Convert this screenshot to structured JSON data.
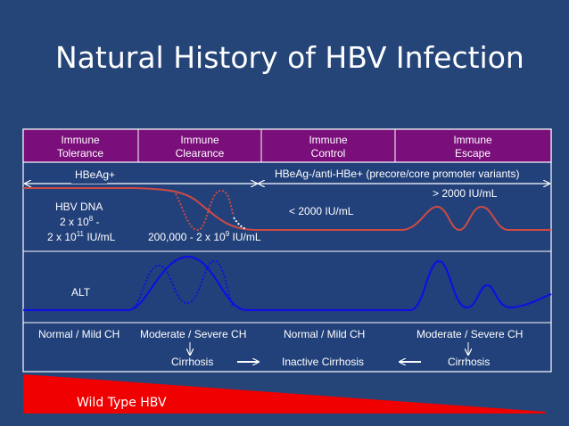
{
  "title": "Natural History of HBV Infection",
  "phases": [
    [
      "Immune",
      "Tolerance"
    ],
    [
      "Immune",
      "Clearance"
    ],
    [
      "Immune",
      "Control"
    ],
    [
      "Immune",
      "Escape"
    ]
  ],
  "hbeag_positive": "HBeAg+",
  "hbeag_negative": "HBeAg-/anti-HBe+ (precore/core promoter variants)",
  "hbv_dna": "HBV DNA",
  "dna_range_1": {
    "base": "2 x 10",
    "sup": "8",
    "tail": " -"
  },
  "dna_range_2": {
    "base": "2 x 10",
    "sup": "11",
    "tail": " IU/mL"
  },
  "dna_range_3": {
    "base": "200,000 - 2 x 10",
    "sup": "9",
    "tail": " IU/mL"
  },
  "dna_low": "< 2000 IU/mL",
  "dna_high": "> 2000 IU/mL",
  "alt": "ALT",
  "disease": [
    "Normal / Mild CH",
    "Moderate / Severe CH",
    "Normal / Mild CH",
    "Moderate / Severe CH"
  ],
  "outcomes": [
    "Cirrhosis",
    "Inactive Cirrhosis",
    "Cirrhosis"
  ],
  "wild_type": "Wild Type HBV"
}
